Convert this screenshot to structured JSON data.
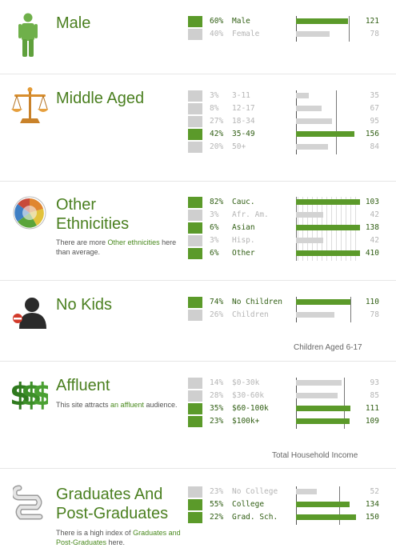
{
  "sections": {
    "gender": {
      "title": "Male",
      "rows": [
        {
          "pct": "60%",
          "label": "Male",
          "index": "121",
          "active": true,
          "share": 0.6,
          "bar": 121
        },
        {
          "pct": "40%",
          "label": "Female",
          "index": "78",
          "active": false,
          "share": 0.4,
          "bar": 78
        }
      ]
    },
    "age": {
      "title": "Middle Aged",
      "rows": [
        {
          "pct": "3%",
          "label": "3-11",
          "index": "35",
          "active": false,
          "share": 0.03,
          "bar": 35
        },
        {
          "pct": "8%",
          "label": "12-17",
          "index": "67",
          "active": false,
          "share": 0.08,
          "bar": 67
        },
        {
          "pct": "27%",
          "label": "18-34",
          "index": "95",
          "active": false,
          "share": 0.27,
          "bar": 95
        },
        {
          "pct": "42%",
          "label": "35-49",
          "index": "156",
          "active": true,
          "share": 0.42,
          "bar": 156
        },
        {
          "pct": "20%",
          "label": "50+",
          "index": "84",
          "active": false,
          "share": 0.2,
          "bar": 84
        }
      ]
    },
    "ethnicity": {
      "title_line1": "Other",
      "title_line2": "Ethnicities",
      "desc_pre": "There are more",
      "desc_hl": "Other ethnicities",
      "desc_post": "here than average.",
      "rows": [
        {
          "pct": "82%",
          "label": "Cauc.",
          "index": "103",
          "active": true,
          "share": 0.82,
          "bar": 103
        },
        {
          "pct": "3%",
          "label": "Afr. Am.",
          "index": "42",
          "active": false,
          "share": 0.03,
          "bar": 42
        },
        {
          "pct": "6%",
          "label": "Asian",
          "index": "138",
          "active": true,
          "share": 0.06,
          "bar": 138
        },
        {
          "pct": "3%",
          "label": "Hisp.",
          "index": "42",
          "active": false,
          "share": 0.03,
          "bar": 42
        },
        {
          "pct": "6%",
          "label": "Other",
          "index": "410",
          "active": true,
          "share": 0.06,
          "bar": 410
        }
      ]
    },
    "kids": {
      "title": "No Kids",
      "caption": "Children Aged 6-17",
      "rows": [
        {
          "pct": "74%",
          "label": "No Children",
          "index": "110",
          "active": true,
          "share": 0.74,
          "bar": 110
        },
        {
          "pct": "26%",
          "label": "Children",
          "index": "78",
          "active": false,
          "share": 0.26,
          "bar": 78
        }
      ]
    },
    "income": {
      "title": "Affluent",
      "desc_pre": "This site attracts",
      "desc_hl": "an affluent",
      "desc_post": "audience.",
      "caption": "Total Household Income",
      "rows": [
        {
          "pct": "14%",
          "label": "$0-30k",
          "index": "93",
          "active": false,
          "share": 0.14,
          "bar": 93
        },
        {
          "pct": "28%",
          "label": "$30-60k",
          "index": "85",
          "active": false,
          "share": 0.28,
          "bar": 85
        },
        {
          "pct": "35%",
          "label": "$60-100k",
          "index": "111",
          "active": true,
          "share": 0.35,
          "bar": 111
        },
        {
          "pct": "23%",
          "label": "$100k+",
          "index": "109",
          "active": true,
          "share": 0.23,
          "bar": 109
        }
      ]
    },
    "education": {
      "title_line1": "Graduates And",
      "title_line2": "Post-Graduates",
      "desc_pre": "There is a high index of",
      "desc_hl": "Graduates and Post-Graduates",
      "desc_post": "here.",
      "rows": [
        {
          "pct": "23%",
          "label": "No College",
          "index": "52",
          "active": false,
          "share": 0.23,
          "bar": 52
        },
        {
          "pct": "55%",
          "label": "College",
          "index": "134",
          "active": true,
          "share": 0.55,
          "bar": 134
        },
        {
          "pct": "22%",
          "label": "Grad. Sch.",
          "index": "150",
          "active": true,
          "share": 0.22,
          "bar": 150
        }
      ]
    }
  },
  "colors": {
    "accent": "#4a7f1f",
    "bar_active": "#5b9a2a",
    "bar_inactive": "#d3d3d3"
  }
}
